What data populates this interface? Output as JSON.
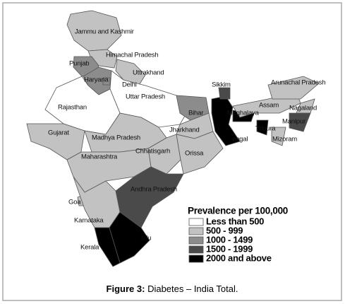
{
  "legend": {
    "title": "Prevalence per 100,000",
    "classes": [
      {
        "label": "Less than 500",
        "color": "#ffffff"
      },
      {
        "label": "500 - 999",
        "color": "#c2c2c2"
      },
      {
        "label": "1000 - 1499",
        "color": "#8c8c8c"
      },
      {
        "label": "1500 - 1999",
        "color": "#4a4a4a"
      },
      {
        "label": "2000 and above",
        "color": "#000000"
      }
    ]
  },
  "regions": [
    {
      "label": "Jammu and Kashmir",
      "class": 1
    },
    {
      "label": "Himachal Pradesh",
      "class": 1
    },
    {
      "label": "Punjab",
      "class": 2
    },
    {
      "label": "Haryana",
      "class": 2
    },
    {
      "label": "Uttrakhand",
      "class": 1
    },
    {
      "label": "Delhi",
      "class": 2
    },
    {
      "label": "Uttar Pradesh",
      "class": 0
    },
    {
      "label": "Rajasthan",
      "class": 0
    },
    {
      "label": "Gujarat",
      "class": 1
    },
    {
      "label": "Madhya Pradesh",
      "class": 1
    },
    {
      "label": "Bihar",
      "class": 2
    },
    {
      "label": "Jharkhand",
      "class": 1
    },
    {
      "label": "Chhatisgarh",
      "class": 1
    },
    {
      "label": "Orissa",
      "class": 1
    },
    {
      "label": "Maharashtra",
      "class": 1
    },
    {
      "label": "Andhra Pradesh",
      "class": 3
    },
    {
      "label": "Goa",
      "class": 1
    },
    {
      "label": "Karnataka",
      "class": 1
    },
    {
      "label": "Kerala",
      "class": 4
    },
    {
      "label": "adu",
      "class": 4
    },
    {
      "label": "engal",
      "class": 4
    },
    {
      "label": "Sikkim",
      "class": 3
    },
    {
      "label": "Meghalaya",
      "class": 4
    },
    {
      "label": "Assam",
      "class": 1
    },
    {
      "label": "Arunachal Pradesh",
      "class": 1
    },
    {
      "label": "Nagaland",
      "class": 1
    },
    {
      "label": "Manipur",
      "class": 3
    },
    {
      "label": "Mizoram",
      "class": 1
    },
    {
      "label": "Tripura",
      "class": 4
    }
  ],
  "caption": {
    "label": "Figure 3:",
    "text": "Diabetes – India Total."
  }
}
